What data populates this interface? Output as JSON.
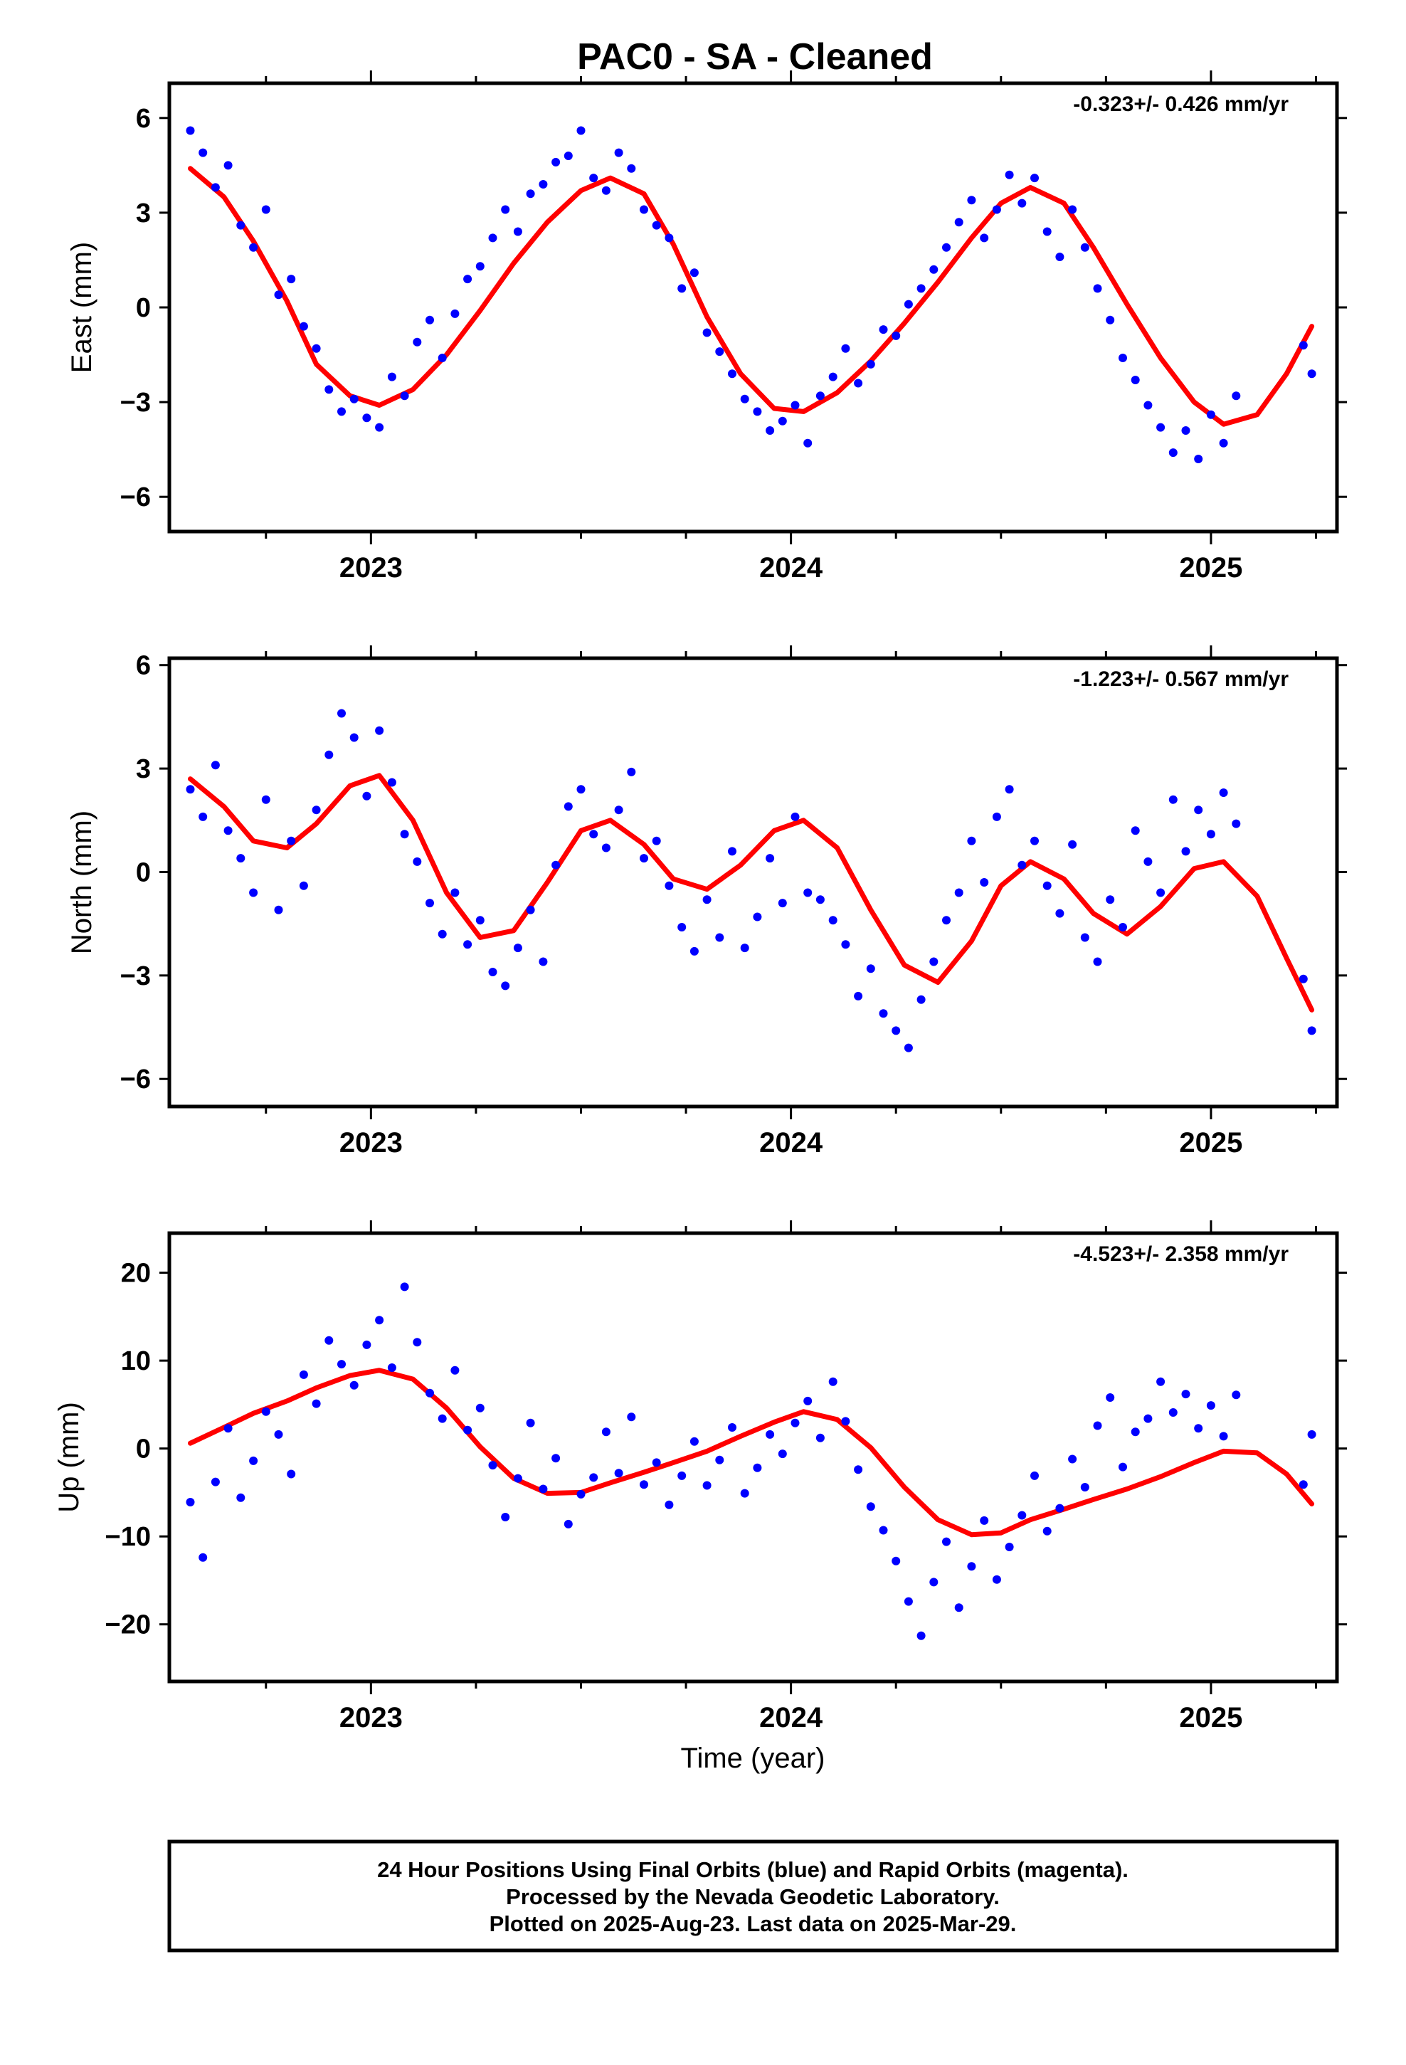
{
  "title": "PAC0  - SA - Cleaned",
  "colors": {
    "final_orbits": "#0000ff",
    "rapid_orbits": "#ff00ff",
    "model": "#ff0000",
    "frame": "#000000"
  },
  "footer": [
    "24 Hour Positions Using Final Orbits (blue) and Rapid Orbits (magenta).",
    "Processed by the Nevada Geodetic Laboratory.",
    "Plotted on 2025-Aug-23. Last data on 2025-Mar-29."
  ],
  "chart_data": [
    {
      "type": "scatter",
      "component": "East",
      "ylabel": "East (mm)",
      "xlabel": "",
      "rate_label": "-0.323+/- 0.426 mm/yr",
      "xlim": [
        2022.52,
        2025.3
      ],
      "ylim": [
        -7.1,
        7.1
      ],
      "yticks": [
        -6,
        -3,
        0,
        3,
        6
      ],
      "yticklabels": [
        "−6",
        "−3",
        "0",
        "3",
        "6"
      ],
      "xticks": [
        2023,
        2024,
        2025
      ],
      "xticklabels": [
        "2023",
        "2024",
        "2025"
      ],
      "series": [
        {
          "style": "points",
          "x": [
            2022.57,
            2022.6,
            2022.63,
            2022.66,
            2022.69,
            2022.72,
            2022.75,
            2022.78,
            2022.81,
            2022.84,
            2022.87,
            2022.9,
            2022.93,
            2022.96,
            2022.99,
            2023.02,
            2023.05,
            2023.08,
            2023.11,
            2023.14,
            2023.17,
            2023.2,
            2023.23,
            2023.26,
            2023.29,
            2023.32,
            2023.35,
            2023.38,
            2023.41,
            2023.44,
            2023.47,
            2023.5,
            2023.53,
            2023.56,
            2023.59,
            2023.62,
            2023.65,
            2023.68,
            2023.71,
            2023.74,
            2023.77,
            2023.8,
            2023.83,
            2023.86,
            2023.89,
            2023.92,
            2023.95,
            2023.98,
            2024.01,
            2024.04,
            2024.07,
            2024.1,
            2024.13,
            2024.16,
            2024.19,
            2024.22,
            2024.25,
            2024.28,
            2024.31,
            2024.34,
            2024.37,
            2024.4,
            2024.43,
            2024.46,
            2024.49,
            2024.52,
            2024.55,
            2024.58,
            2024.61,
            2024.64,
            2024.67,
            2024.7,
            2024.73,
            2024.76,
            2024.79,
            2024.82,
            2024.85,
            2024.88,
            2024.91,
            2024.94,
            2024.97,
            2025.0,
            2025.03,
            2025.06,
            2025.22,
            2025.24
          ],
          "y": [
            5.6,
            4.9,
            3.8,
            4.5,
            2.6,
            1.9,
            3.1,
            0.4,
            0.9,
            -0.6,
            -1.3,
            -2.6,
            -3.3,
            -2.9,
            -3.5,
            -3.8,
            -2.2,
            -2.8,
            -1.1,
            -0.4,
            -1.6,
            -0.2,
            0.9,
            1.3,
            2.2,
            3.1,
            2.4,
            3.6,
            3.9,
            4.6,
            4.8,
            5.6,
            4.1,
            3.7,
            4.9,
            4.4,
            3.1,
            2.6,
            2.2,
            0.6,
            1.1,
            -0.8,
            -1.4,
            -2.1,
            -2.9,
            -3.3,
            -3.9,
            -3.6,
            -3.1,
            -4.3,
            -2.8,
            -2.2,
            -1.3,
            -2.4,
            -1.8,
            -0.7,
            -0.9,
            0.1,
            0.6,
            1.2,
            1.9,
            2.7,
            3.4,
            2.2,
            3.1,
            4.2,
            3.3,
            4.1,
            2.4,
            1.6,
            3.1,
            1.9,
            0.6,
            -0.4,
            -1.6,
            -2.3,
            -3.1,
            -3.8,
            -4.6,
            -3.9,
            -4.8,
            -3.4,
            -4.3,
            -2.8,
            -1.2,
            -2.1
          ]
        },
        {
          "style": "line",
          "x": [
            2022.57,
            2022.65,
            2022.72,
            2022.8,
            2022.87,
            2022.95,
            2023.02,
            2023.1,
            2023.18,
            2023.26,
            2023.34,
            2023.42,
            2023.5,
            2023.57,
            2023.65,
            2023.72,
            2023.8,
            2023.88,
            2023.96,
            2024.03,
            2024.11,
            2024.19,
            2024.27,
            2024.35,
            2024.43,
            2024.5,
            2024.57,
            2024.65,
            2024.72,
            2024.8,
            2024.88,
            2024.96,
            2025.03,
            2025.11,
            2025.18,
            2025.24
          ],
          "y": [
            4.4,
            3.5,
            2.1,
            0.2,
            -1.8,
            -2.8,
            -3.1,
            -2.6,
            -1.5,
            -0.1,
            1.4,
            2.7,
            3.7,
            4.1,
            3.6,
            2.0,
            -0.3,
            -2.1,
            -3.2,
            -3.3,
            -2.7,
            -1.7,
            -0.5,
            0.8,
            2.2,
            3.3,
            3.8,
            3.3,
            1.9,
            0.1,
            -1.6,
            -3.0,
            -3.7,
            -3.4,
            -2.1,
            -0.6
          ]
        }
      ]
    },
    {
      "type": "scatter",
      "component": "North",
      "ylabel": "North (mm)",
      "xlabel": "",
      "rate_label": "-1.223+/- 0.567 mm/yr",
      "xlim": [
        2022.52,
        2025.3
      ],
      "ylim": [
        -6.8,
        6.2
      ],
      "yticks": [
        -6,
        -3,
        0,
        3,
        6
      ],
      "yticklabels": [
        "−6",
        "−3",
        "0",
        "3",
        "6"
      ],
      "xticks": [
        2023,
        2024,
        2025
      ],
      "xticklabels": [
        "2023",
        "2024",
        "2025"
      ],
      "series": [
        {
          "style": "points",
          "x": [
            2022.57,
            2022.6,
            2022.63,
            2022.66,
            2022.69,
            2022.72,
            2022.75,
            2022.78,
            2022.81,
            2022.84,
            2022.87,
            2022.9,
            2022.93,
            2022.96,
            2022.99,
            2023.02,
            2023.05,
            2023.08,
            2023.11,
            2023.14,
            2023.17,
            2023.2,
            2023.23,
            2023.26,
            2023.29,
            2023.32,
            2023.35,
            2023.38,
            2023.41,
            2023.44,
            2023.47,
            2023.5,
            2023.53,
            2023.56,
            2023.59,
            2023.62,
            2023.65,
            2023.68,
            2023.71,
            2023.74,
            2023.77,
            2023.8,
            2023.83,
            2023.86,
            2023.89,
            2023.92,
            2023.95,
            2023.98,
            2024.01,
            2024.04,
            2024.07,
            2024.1,
            2024.13,
            2024.16,
            2024.19,
            2024.22,
            2024.25,
            2024.28,
            2024.31,
            2024.34,
            2024.37,
            2024.4,
            2024.43,
            2024.46,
            2024.49,
            2024.52,
            2024.55,
            2024.58,
            2024.61,
            2024.64,
            2024.67,
            2024.7,
            2024.73,
            2024.76,
            2024.79,
            2024.82,
            2024.85,
            2024.88,
            2024.91,
            2024.94,
            2024.97,
            2025.0,
            2025.03,
            2025.06,
            2025.22,
            2025.24
          ],
          "y": [
            2.4,
            1.6,
            3.1,
            1.2,
            0.4,
            -0.6,
            2.1,
            -1.1,
            0.9,
            -0.4,
            1.8,
            3.4,
            4.6,
            3.9,
            2.2,
            4.1,
            2.6,
            1.1,
            0.3,
            -0.9,
            -1.8,
            -0.6,
            -2.1,
            -1.4,
            -2.9,
            -3.3,
            -2.2,
            -1.1,
            -2.6,
            0.2,
            1.9,
            2.4,
            1.1,
            0.7,
            1.8,
            2.9,
            0.4,
            0.9,
            -0.4,
            -1.6,
            -2.3,
            -0.8,
            -1.9,
            0.6,
            -2.2,
            -1.3,
            0.4,
            -0.9,
            1.6,
            -0.6,
            -0.8,
            -1.4,
            -2.1,
            -3.6,
            -2.8,
            -4.1,
            -4.6,
            -5.1,
            -3.7,
            -2.6,
            -1.4,
            -0.6,
            0.9,
            -0.3,
            1.6,
            2.4,
            0.2,
            0.9,
            -0.4,
            -1.2,
            0.8,
            -1.9,
            -2.6,
            -0.8,
            -1.6,
            1.2,
            0.3,
            -0.6,
            2.1,
            0.6,
            1.8,
            1.1,
            2.3,
            1.4,
            -3.1,
            -4.6
          ]
        },
        {
          "style": "line",
          "x": [
            2022.57,
            2022.65,
            2022.72,
            2022.8,
            2022.87,
            2022.95,
            2023.02,
            2023.1,
            2023.18,
            2023.26,
            2023.34,
            2023.42,
            2023.5,
            2023.57,
            2023.65,
            2023.72,
            2023.8,
            2023.88,
            2023.96,
            2024.03,
            2024.11,
            2024.19,
            2024.27,
            2024.35,
            2024.43,
            2024.5,
            2024.57,
            2024.65,
            2024.72,
            2024.8,
            2024.88,
            2024.96,
            2025.03,
            2025.11,
            2025.18,
            2025.24
          ],
          "y": [
            2.7,
            1.9,
            0.9,
            0.7,
            1.4,
            2.5,
            2.8,
            1.5,
            -0.6,
            -1.9,
            -1.7,
            -0.3,
            1.2,
            1.5,
            0.8,
            -0.2,
            -0.5,
            0.2,
            1.2,
            1.5,
            0.7,
            -1.1,
            -2.7,
            -3.2,
            -2.0,
            -0.4,
            0.3,
            -0.2,
            -1.2,
            -1.8,
            -1.0,
            0.1,
            0.3,
            -0.7,
            -2.5,
            -4.0
          ]
        }
      ]
    },
    {
      "type": "scatter",
      "component": "Up",
      "ylabel": "Up (mm)",
      "xlabel": "Time (year)",
      "rate_label": "-4.523+/- 2.358 mm/yr",
      "xlim": [
        2022.52,
        2025.3
      ],
      "ylim": [
        -26.5,
        24.5
      ],
      "yticks": [
        -20,
        -10,
        0,
        10,
        20
      ],
      "yticklabels": [
        "−20",
        "−10",
        "0",
        "10",
        "20"
      ],
      "xticks": [
        2023,
        2024,
        2025
      ],
      "xticklabels": [
        "2023",
        "2024",
        "2025"
      ],
      "series": [
        {
          "style": "points",
          "x": [
            2022.57,
            2022.6,
            2022.63,
            2022.66,
            2022.69,
            2022.72,
            2022.75,
            2022.78,
            2022.81,
            2022.84,
            2022.87,
            2022.9,
            2022.93,
            2022.96,
            2022.99,
            2023.02,
            2023.05,
            2023.08,
            2023.11,
            2023.14,
            2023.17,
            2023.2,
            2023.23,
            2023.26,
            2023.29,
            2023.32,
            2023.35,
            2023.38,
            2023.41,
            2023.44,
            2023.47,
            2023.5,
            2023.53,
            2023.56,
            2023.59,
            2023.62,
            2023.65,
            2023.68,
            2023.71,
            2023.74,
            2023.77,
            2023.8,
            2023.83,
            2023.86,
            2023.89,
            2023.92,
            2023.95,
            2023.98,
            2024.01,
            2024.04,
            2024.07,
            2024.1,
            2024.13,
            2024.16,
            2024.19,
            2024.22,
            2024.25,
            2024.28,
            2024.31,
            2024.34,
            2024.37,
            2024.4,
            2024.43,
            2024.46,
            2024.49,
            2024.52,
            2024.55,
            2024.58,
            2024.61,
            2024.64,
            2024.67,
            2024.7,
            2024.73,
            2024.76,
            2024.79,
            2024.82,
            2024.85,
            2024.88,
            2024.91,
            2024.94,
            2024.97,
            2025.0,
            2025.03,
            2025.06,
            2025.22,
            2025.24
          ],
          "y": [
            -6.1,
            -12.4,
            -3.8,
            2.3,
            -5.6,
            -1.4,
            4.2,
            1.6,
            -2.9,
            8.4,
            5.1,
            12.3,
            9.6,
            7.2,
            11.8,
            14.6,
            9.2,
            18.4,
            12.1,
            6.3,
            3.4,
            8.9,
            2.1,
            4.6,
            -1.9,
            -7.8,
            -3.4,
            2.9,
            -4.6,
            -1.1,
            -8.6,
            -5.2,
            -3.3,
            1.9,
            -2.8,
            3.6,
            -4.1,
            -1.6,
            -6.4,
            -3.1,
            0.8,
            -4.2,
            -1.3,
            2.4,
            -5.1,
            -2.2,
            1.6,
            -0.6,
            2.9,
            5.4,
            1.2,
            7.6,
            3.1,
            -2.4,
            -6.6,
            -9.3,
            -12.8,
            -17.4,
            -21.3,
            -15.2,
            -10.6,
            -18.1,
            -13.4,
            -8.2,
            -14.9,
            -11.2,
            -7.6,
            -3.1,
            -9.4,
            -6.8,
            -1.2,
            -4.4,
            2.6,
            5.8,
            -2.1,
            1.9,
            3.4,
            7.6,
            4.1,
            6.2,
            2.3,
            4.9,
            1.4,
            6.1,
            -4.1,
            1.6
          ]
        },
        {
          "style": "line",
          "x": [
            2022.57,
            2022.65,
            2022.72,
            2022.8,
            2022.87,
            2022.95,
            2023.02,
            2023.1,
            2023.18,
            2023.26,
            2023.34,
            2023.42,
            2023.5,
            2023.57,
            2023.65,
            2023.72,
            2023.8,
            2023.88,
            2023.96,
            2024.03,
            2024.11,
            2024.19,
            2024.27,
            2024.35,
            2024.43,
            2024.5,
            2024.57,
            2024.65,
            2024.72,
            2024.8,
            2024.88,
            2024.96,
            2025.03,
            2025.11,
            2025.18,
            2025.24
          ],
          "y": [
            0.6,
            2.4,
            4.0,
            5.4,
            6.9,
            8.3,
            8.9,
            7.9,
            4.6,
            0.2,
            -3.4,
            -5.1,
            -5.0,
            -3.9,
            -2.7,
            -1.6,
            -0.3,
            1.4,
            3.0,
            4.2,
            3.3,
            0.1,
            -4.4,
            -8.1,
            -9.8,
            -9.6,
            -8.1,
            -6.9,
            -5.8,
            -4.6,
            -3.2,
            -1.6,
            -0.3,
            -0.5,
            -2.9,
            -6.3
          ]
        }
      ]
    }
  ]
}
